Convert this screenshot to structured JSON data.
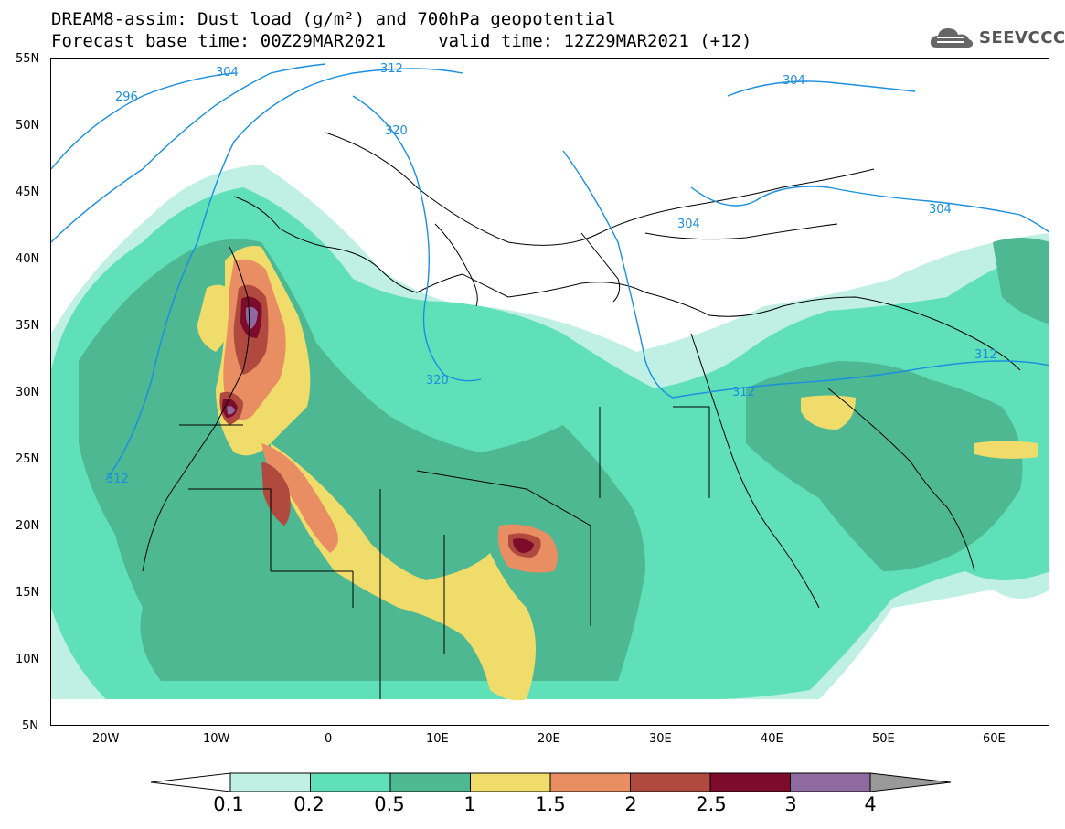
{
  "header": {
    "title_line1": "DREAM8-assim: Dust load (g/m²) and 700hPa geopotential",
    "title_line2": "Forecast base time: 00Z29MAR2021     valid time: 12Z29MAR2021 (+12)"
  },
  "logo": {
    "text": "SEEVCCC",
    "icon": "cloud-icon"
  },
  "map": {
    "lat_labels": [
      "55N",
      "50N",
      "45N",
      "40N",
      "35N",
      "30N",
      "25N",
      "20N",
      "15N",
      "10N",
      "5N"
    ],
    "lon_labels": [
      "20W",
      "10W",
      "0",
      "10E",
      "20E",
      "30E",
      "40E",
      "50E",
      "60E"
    ],
    "contour_labels": [
      "296",
      "304",
      "312",
      "320",
      "304",
      "304",
      "304",
      "312",
      "320",
      "312",
      "312"
    ],
    "colors": {
      "land": "#ffffff",
      "coast": "#000000",
      "contour": "#1a8fe0"
    }
  },
  "colorbar": {
    "labels": [
      "0.1",
      "0.2",
      "0.5",
      "1",
      "1.5",
      "2",
      "2.5",
      "3",
      "4"
    ],
    "colors": [
      "#bff0e3",
      "#5fe0b8",
      "#4db891",
      "#f0dc6b",
      "#e88e62",
      "#b0493e",
      "#7d0b2c",
      "#8f6aa0"
    ],
    "under_color": "#ffffff",
    "over_color": "#999999"
  }
}
